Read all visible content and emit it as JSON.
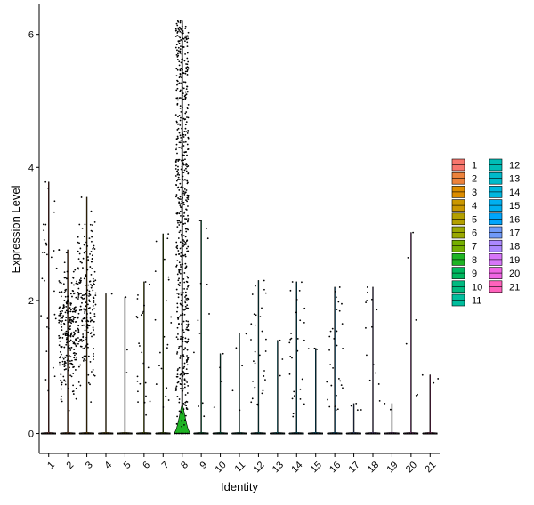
{
  "chart_data": {
    "type": "violin",
    "xlabel": "Identity",
    "ylabel": "Expression Level",
    "categories": [
      "1",
      "2",
      "3",
      "4",
      "5",
      "6",
      "7",
      "8",
      "9",
      "10",
      "11",
      "12",
      "13",
      "14",
      "15",
      "16",
      "17",
      "18",
      "19",
      "20",
      "21"
    ],
    "ylim": [
      -0.3,
      6.45
    ],
    "yticks": [
      0,
      2,
      4,
      6
    ],
    "grid": false,
    "legend_position": "right",
    "legend_columns": 2,
    "max_values": [
      3.78,
      2.76,
      3.55,
      2.1,
      2.05,
      2.28,
      3.0,
      6.2,
      3.2,
      1.2,
      1.5,
      2.3,
      1.4,
      2.28,
      1.28,
      2.2,
      0.45,
      2.2,
      0.45,
      3.02,
      0.88
    ],
    "nonzero_counts": [
      30,
      260,
      220,
      1,
      3,
      25,
      22,
      600,
      12,
      4,
      5,
      30,
      3,
      28,
      3,
      30,
      4,
      14,
      2,
      6,
      3
    ],
    "mode_values": [
      0,
      0,
      0,
      0,
      0,
      0,
      0,
      0.15,
      0,
      0,
      0,
      0,
      0,
      0,
      0,
      0,
      0,
      0,
      0,
      0,
      0
    ],
    "colors": [
      "#F8766D",
      "#EC823C",
      "#DD8D00",
      "#CA9700",
      "#B4A000",
      "#9AA800",
      "#75AF00",
      "#1FB424",
      "#00B85F",
      "#00BA80",
      "#00BE9D",
      "#00BDB6",
      "#00BBCB",
      "#00B7DE",
      "#00B0F0",
      "#00A5FC",
      "#6F9AF8",
      "#AC88FF",
      "#D776F8",
      "#F065E4",
      "#FF62BC"
    ]
  }
}
